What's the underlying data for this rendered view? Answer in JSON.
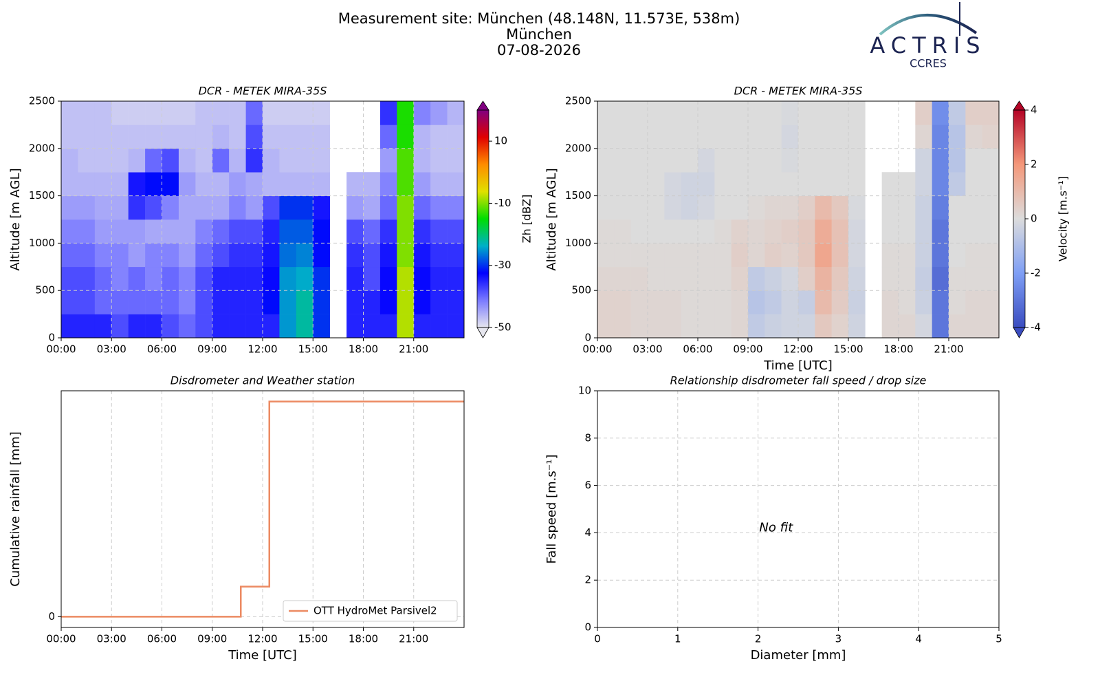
{
  "figure_title": [
    "Measurement site: München (48.148N, 11.573E, 538m)",
    "München",
    "07-08-2026"
  ],
  "logo": {
    "text": "ACTRIS",
    "subtext": "CCRES"
  },
  "chart_data": [
    {
      "type": "heatmap",
      "title": "DCR - METEK MIRA-35S",
      "y_label": "Altitude [m AGL]",
      "xlim": [
        0,
        24
      ],
      "ylim": [
        0,
        2500
      ],
      "xticks": [
        {
          "value": 0,
          "label": "00:00"
        },
        {
          "value": 3,
          "label": "03:00"
        },
        {
          "value": 6,
          "label": "06:00"
        },
        {
          "value": 9,
          "label": "09:00"
        },
        {
          "value": 12,
          "label": "12:00"
        },
        {
          "value": 15,
          "label": "15:00"
        },
        {
          "value": 18,
          "label": "18:00"
        },
        {
          "value": 21,
          "label": "21:00"
        }
      ],
      "yticks": [
        0,
        500,
        1000,
        1500,
        2000,
        2500
      ],
      "grid": true,
      "x_bins": [
        0,
        1,
        2,
        3,
        4,
        5,
        6,
        7,
        8,
        9,
        10,
        11,
        12,
        13,
        14,
        15,
        16,
        17,
        18,
        19,
        20,
        21,
        22,
        23,
        24
      ],
      "y_bins": [
        0,
        250,
        500,
        750,
        1000,
        1250,
        1500,
        1750,
        2000,
        2250,
        2500
      ],
      "colorbar_label": "Zh [dBZ]",
      "clim": [
        -50,
        20
      ],
      "cticks": [
        -50,
        -30,
        -10,
        10
      ],
      "colormap": [
        "#e6e6ee",
        "#7a7aff",
        "#0000ff",
        "#00b0c8",
        "#00dd00",
        "#e0e000",
        "#ff8c00",
        "#e00000",
        "#800080"
      ],
      "z": [
        [
          -35,
          -35,
          -35,
          -38,
          -35,
          -35,
          -38,
          -40,
          -38,
          -35,
          -35,
          -35,
          -35,
          -25,
          -22,
          -30,
          null,
          -35,
          -35,
          -35,
          -8,
          -35,
          -35,
          -35
        ],
        [
          -38,
          -38,
          -40,
          -40,
          -40,
          -40,
          -40,
          -42,
          -38,
          -35,
          -35,
          -35,
          -32,
          -25,
          -22,
          -30,
          null,
          -35,
          -35,
          -33,
          -8,
          -33,
          -35,
          -35
        ],
        [
          -38,
          -38,
          -40,
          -42,
          -40,
          -42,
          -40,
          -42,
          -38,
          -35,
          -35,
          -35,
          -33,
          -25,
          -24,
          -30,
          null,
          -35,
          -38,
          -33,
          -8,
          -33,
          -35,
          -35
        ],
        [
          -40,
          -40,
          -42,
          -42,
          -44,
          -42,
          -42,
          -44,
          -40,
          -38,
          -36,
          -36,
          -34,
          -27,
          -26,
          -32,
          null,
          -36,
          -38,
          -34,
          -10,
          -34,
          -36,
          -36
        ],
        [
          -42,
          -42,
          -44,
          -44,
          -44,
          -45,
          -45,
          -45,
          -42,
          -40,
          -38,
          -38,
          -35,
          -28,
          -28,
          -32,
          null,
          -38,
          -40,
          -36,
          -10,
          -36,
          -38,
          -38
        ],
        [
          -44,
          -44,
          -45,
          -45,
          -36,
          -38,
          -42,
          -45,
          -45,
          -45,
          -42,
          -44,
          -38,
          -30,
          -30,
          -34,
          null,
          -44,
          -45,
          -40,
          -10,
          -40,
          -42,
          -42
        ],
        [
          -46,
          -46,
          -46,
          -46,
          -34,
          -32,
          -32,
          -44,
          -46,
          -46,
          -44,
          -45,
          -46,
          -46,
          -46,
          -46,
          null,
          -46,
          -46,
          -42,
          -12,
          -44,
          -46,
          -46
        ],
        [
          -46,
          -47,
          -47,
          -47,
          -46,
          -40,
          -38,
          -46,
          -47,
          -40,
          -46,
          -36,
          -46,
          -47,
          -47,
          -47,
          null,
          null,
          null,
          -44,
          -12,
          -46,
          -47,
          -47
        ],
        [
          -47,
          -47,
          -47,
          -47,
          -47,
          -47,
          -47,
          -47,
          -47,
          -46,
          -47,
          -38,
          -47,
          -47,
          -47,
          -47,
          null,
          null,
          null,
          -40,
          -14,
          -46,
          -47,
          -47
        ],
        [
          -47,
          -47,
          -47,
          -48,
          -48,
          -48,
          -48,
          -48,
          -47,
          -47,
          -47,
          -40,
          -48,
          -48,
          -48,
          -48,
          null,
          null,
          null,
          -36,
          -14,
          -42,
          -44,
          -46
        ]
      ]
    },
    {
      "type": "heatmap",
      "title": "DCR - METEK MIRA-35S",
      "y_label": "Altitude [m AGL]",
      "x_label": "Time [UTC]",
      "xlim": [
        0,
        24
      ],
      "ylim": [
        0,
        2500
      ],
      "xticks": [
        {
          "value": 0,
          "label": "00:00"
        },
        {
          "value": 3,
          "label": "03:00"
        },
        {
          "value": 6,
          "label": "06:00"
        },
        {
          "value": 9,
          "label": "09:00"
        },
        {
          "value": 12,
          "label": "12:00"
        },
        {
          "value": 15,
          "label": "15:00"
        },
        {
          "value": 18,
          "label": "18:00"
        },
        {
          "value": 21,
          "label": "21:00"
        }
      ],
      "yticks": [
        0,
        500,
        1000,
        1500,
        2000,
        2500
      ],
      "grid": true,
      "x_bins": [
        0,
        1,
        2,
        3,
        4,
        5,
        6,
        7,
        8,
        9,
        10,
        11,
        12,
        13,
        14,
        15,
        16,
        17,
        18,
        19,
        20,
        21,
        22,
        23,
        24
      ],
      "y_bins": [
        0,
        250,
        500,
        750,
        1000,
        1250,
        1500,
        1750,
        2000,
        2250,
        2500
      ],
      "colorbar_label": "Velocity [m.s⁻¹]",
      "clim": [
        -4,
        4
      ],
      "cticks": [
        -4,
        -2,
        0,
        2,
        4
      ],
      "colormap": [
        "#3a4cc0",
        "#7f9ff5",
        "#dcdcdc",
        "#f4987a",
        "#b40426"
      ],
      "z": [
        [
          0.3,
          0.3,
          0.2,
          0.2,
          0.2,
          0.1,
          0.1,
          0.1,
          0.2,
          -0.6,
          -0.4,
          -0.3,
          -0.3,
          0.6,
          0.3,
          -0.3,
          null,
          0.2,
          0.2,
          -0.2,
          -3,
          0.2,
          0.2,
          0.2
        ],
        [
          0.3,
          0.3,
          0.2,
          0.2,
          0.2,
          0.1,
          0.1,
          0.1,
          0.2,
          -0.8,
          -0.6,
          -0.3,
          -0.5,
          1.0,
          0.5,
          -0.4,
          null,
          0.2,
          0.1,
          -0.4,
          -3,
          0.1,
          0.2,
          0.2
        ],
        [
          0.2,
          0.2,
          0.2,
          0.1,
          0.1,
          0.1,
          0.1,
          0.1,
          0.3,
          -0.6,
          -0.4,
          -0.2,
          0.4,
          1.2,
          0.6,
          -0.3,
          null,
          0.1,
          0.1,
          -0.5,
          -3.2,
          0.1,
          0.1,
          0.1
        ],
        [
          0.1,
          0.1,
          0.1,
          0.1,
          0.1,
          0.1,
          0.1,
          0.1,
          0.4,
          0.2,
          0.4,
          0.3,
          0.6,
          1.6,
          0.8,
          -0.2,
          null,
          0.1,
          0.1,
          -0.4,
          -3,
          0,
          0.1,
          0.1
        ],
        [
          0.1,
          0.1,
          0,
          0,
          0,
          0,
          0,
          0.1,
          0.3,
          0.2,
          0.3,
          0.4,
          0.6,
          1.4,
          0.8,
          -0.2,
          null,
          0,
          0,
          -0.4,
          -3,
          0,
          0,
          0
        ],
        [
          0,
          0,
          0,
          0,
          -0.2,
          -0.3,
          -0.2,
          0,
          0,
          0.1,
          0.2,
          0.2,
          0.4,
          1.0,
          0.6,
          -0.1,
          null,
          0,
          0,
          -0.4,
          -2.8,
          0,
          0,
          0
        ],
        [
          0,
          0,
          0,
          0,
          -0.2,
          -0.3,
          -0.3,
          0,
          0,
          0,
          0,
          0,
          0,
          0,
          0,
          0,
          null,
          0,
          0,
          -0.3,
          -2.6,
          -0.6,
          0,
          0
        ],
        [
          0,
          0,
          0,
          0,
          0,
          0,
          -0.2,
          0,
          0,
          0,
          0,
          -0.1,
          0,
          0,
          0,
          0,
          null,
          null,
          null,
          -0.3,
          -2.6,
          -0.8,
          0,
          0
        ],
        [
          0,
          0,
          0,
          0,
          0,
          0,
          0,
          0,
          0,
          0,
          0,
          -0.2,
          0,
          0,
          0,
          0,
          null,
          null,
          null,
          0.2,
          -2.6,
          -0.8,
          0.2,
          0.3
        ],
        [
          0,
          0,
          0,
          0,
          0,
          0,
          0,
          0,
          0,
          0,
          0,
          -0.1,
          0,
          0,
          0,
          0,
          null,
          null,
          null,
          0.4,
          -2.4,
          -0.6,
          0.4,
          0.4
        ]
      ]
    },
    {
      "type": "line",
      "title": "Disdrometer and Weather station",
      "y_label": "Cumulative rainfall [mm]",
      "x_label": "Time [UTC]",
      "xlim": [
        0,
        24
      ],
      "ylim": [
        -0.05,
        1.05
      ],
      "xticks": [
        {
          "value": 0,
          "label": "00:00"
        },
        {
          "value": 3,
          "label": "03:00"
        },
        {
          "value": 6,
          "label": "06:00"
        },
        {
          "value": 9,
          "label": "09:00"
        },
        {
          "value": 12,
          "label": "12:00"
        },
        {
          "value": 15,
          "label": "15:00"
        },
        {
          "value": 18,
          "label": "18:00"
        },
        {
          "value": 21,
          "label": "21:00"
        }
      ],
      "yticks": [
        0
      ],
      "grid": true,
      "legend": "lower right",
      "series": [
        {
          "name": "OTT HydroMet Parsivel2",
          "color": "#ec8a62",
          "x": [
            0,
            10.7,
            10.7,
            12.4,
            12.4,
            24
          ],
          "values": [
            0,
            0,
            0.14,
            0.14,
            1.0,
            1.0
          ]
        }
      ]
    },
    {
      "type": "scatter",
      "title": "Relationship disdrometer fall speed / drop size",
      "y_label": "Fall speed [m.s⁻¹]",
      "x_label": "Diameter [mm]",
      "xlim": [
        0,
        5
      ],
      "ylim": [
        0,
        10
      ],
      "xticks": [
        0,
        1,
        2,
        3,
        4,
        5
      ],
      "yticks": [
        0,
        2,
        4,
        6,
        8,
        10
      ],
      "grid": true,
      "annotation": "No fit"
    }
  ]
}
